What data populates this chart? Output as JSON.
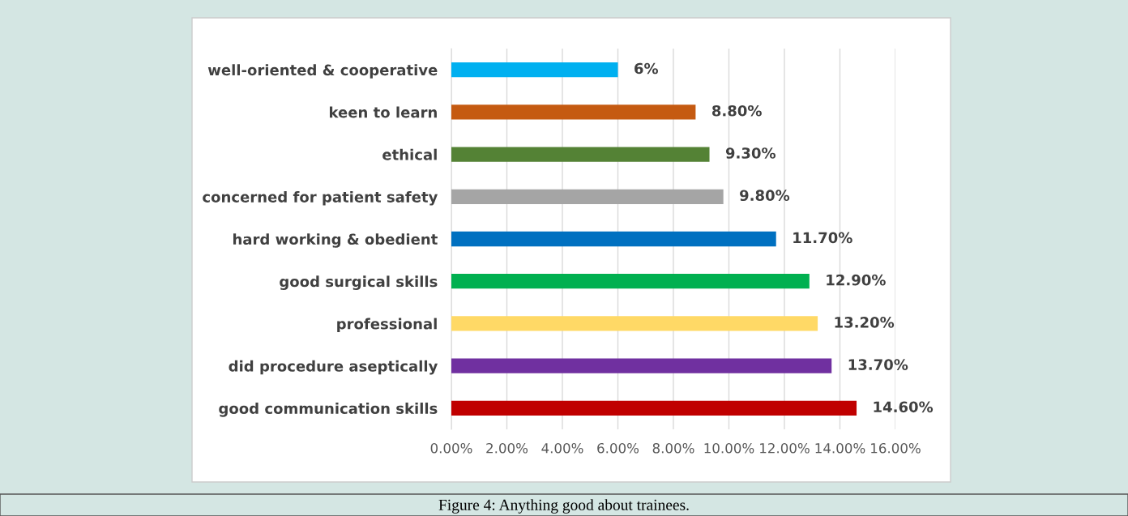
{
  "chart_data": {
    "type": "bar",
    "orientation": "horizontal",
    "categories": [
      "well-oriented & cooperative",
      "keen to learn",
      "ethical",
      "concerned for patient safety",
      "hard working & obedient",
      "good surgical skills",
      "professional",
      "did procedure aseptically",
      "good communication skills"
    ],
    "values": [
      6,
      8.8,
      9.3,
      9.8,
      11.7,
      12.9,
      13.2,
      13.7,
      14.6
    ],
    "value_labels": [
      "6%",
      "8.80%",
      "9.30%",
      "9.80%",
      "11.70%",
      "12.90%",
      "13.20%",
      "13.70%",
      "14.60%"
    ],
    "colors": [
      "#00b0f0",
      "#c55a11",
      "#548235",
      "#a5a5a5",
      "#0070c0",
      "#00b050",
      "#ffd966",
      "#7030a0",
      "#c00000"
    ],
    "xlim": [
      0,
      16
    ],
    "xticks": [
      {
        "value": 0,
        "label": "0.00%"
      },
      {
        "value": 2,
        "label": "2.00%"
      },
      {
        "value": 4,
        "label": "4.00%"
      },
      {
        "value": 6,
        "label": "6.00%"
      },
      {
        "value": 8,
        "label": "8.00%"
      },
      {
        "value": 10,
        "label": "10.00%"
      },
      {
        "value": 12,
        "label": "12.00%"
      },
      {
        "value": 14,
        "label": "14.00%"
      },
      {
        "value": 16,
        "label": "16.00%"
      }
    ],
    "grid": "x",
    "legend": false,
    "annotations": [
      "Figure 4: Anything good about trainees."
    ]
  }
}
